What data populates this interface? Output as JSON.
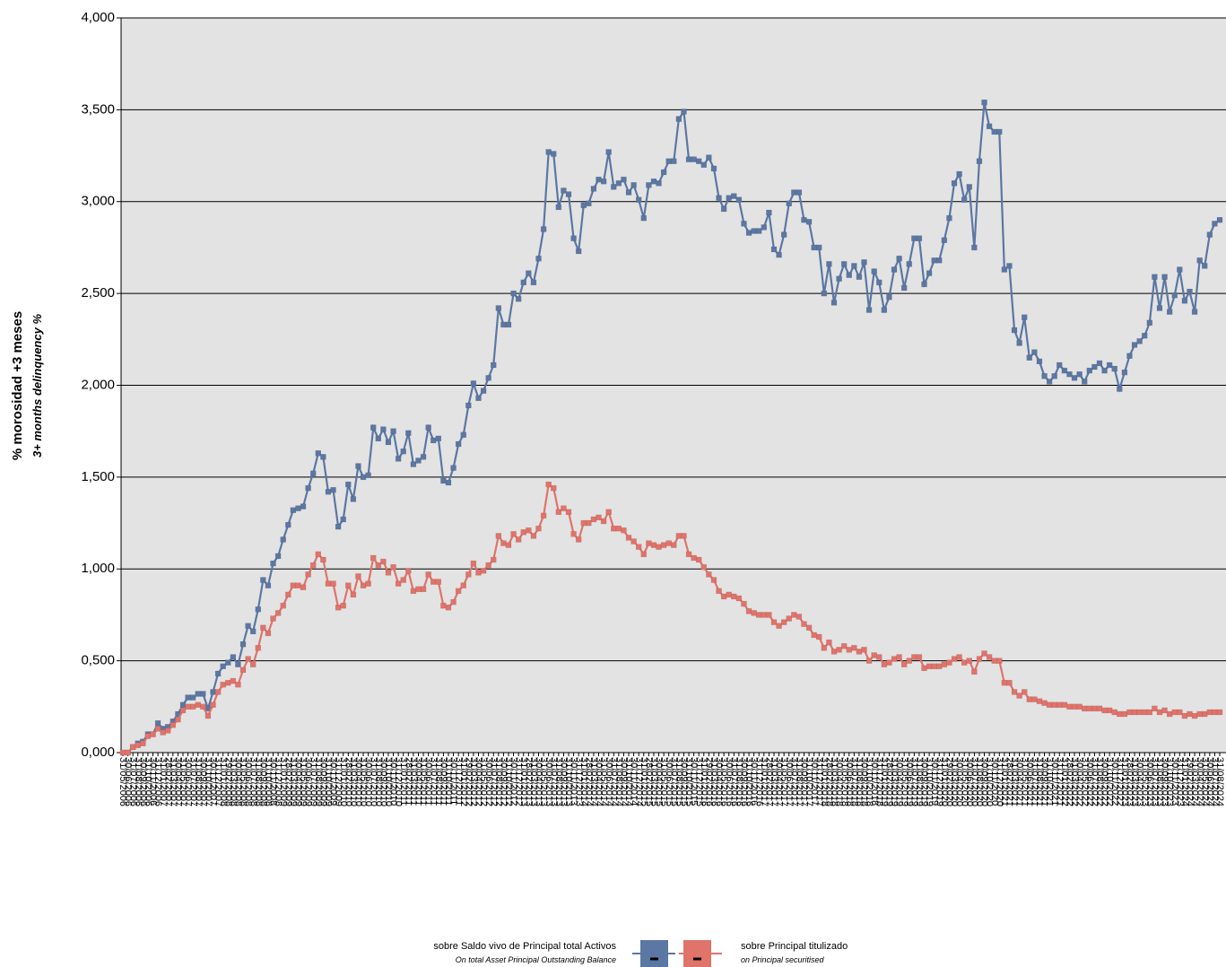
{
  "chart_data": {
    "type": "line",
    "y_title": "% morosidad +3 meses",
    "y_subtitle": "3+ months delinquency %",
    "ylim": [
      0,
      4
    ],
    "yticks": [
      {
        "value": 0,
        "label": "0,000"
      },
      {
        "value": 0.5,
        "label": "0,500"
      },
      {
        "value": 1,
        "label": "1,000"
      },
      {
        "value": 1.5,
        "label": "1,500"
      },
      {
        "value": 2,
        "label": "2,000"
      },
      {
        "value": 2.5,
        "label": "2,500"
      },
      {
        "value": 3,
        "label": "3,000"
      },
      {
        "value": 3.5,
        "label": "3,500"
      },
      {
        "value": 4,
        "label": "4,000"
      }
    ],
    "grid": true,
    "legend": "bottom",
    "categories": [
      "31/05/2006",
      "30/06/2006",
      "31/07/2006",
      "31/08/2006",
      "30/09/2006",
      "31/10/2006",
      "30/11/2006",
      "31/12/2006",
      "31/01/2007",
      "28/02/2007",
      "31/03/2007",
      "30/04/2007",
      "31/05/2007",
      "30/06/2007",
      "31/07/2007",
      "31/08/2007",
      "30/09/2007",
      "31/10/2007",
      "30/11/2007",
      "31/12/2007",
      "31/01/2008",
      "29/02/2008",
      "31/03/2008",
      "30/04/2008",
      "31/05/2008",
      "30/06/2008",
      "31/07/2008",
      "31/08/2008",
      "30/09/2008",
      "31/10/2008",
      "30/11/2008",
      "31/12/2008",
      "31/01/2009",
      "28/02/2009",
      "31/03/2009",
      "30/04/2009",
      "31/05/2009",
      "30/06/2009",
      "31/07/2009",
      "31/08/2009",
      "30/09/2009",
      "31/10/2009",
      "30/11/2009",
      "31/12/2009",
      "31/01/2010",
      "28/02/2010",
      "31/03/2010",
      "30/04/2010",
      "31/05/2010",
      "30/06/2010",
      "31/07/2010",
      "31/08/2010",
      "30/09/2010",
      "31/10/2010",
      "30/11/2010",
      "31/12/2010",
      "31/01/2011",
      "28/02/2011",
      "31/03/2011",
      "30/04/2011",
      "31/05/2011",
      "30/06/2011",
      "31/07/2011",
      "31/08/2011",
      "30/09/2011",
      "31/10/2011",
      "30/11/2011",
      "31/12/2011",
      "31/01/2012",
      "29/02/2012",
      "31/03/2012",
      "30/04/2012",
      "31/05/2012",
      "30/06/2012",
      "31/07/2012",
      "31/08/2012",
      "30/09/2012",
      "31/10/2012",
      "30/11/2012",
      "31/12/2012",
      "31/01/2013",
      "28/02/2013",
      "31/03/2013",
      "30/04/2013",
      "31/05/2013",
      "30/06/2013",
      "31/07/2013",
      "31/08/2013",
      "30/09/2013",
      "31/10/2013",
      "30/11/2013",
      "31/12/2013",
      "31/01/2014",
      "28/02/2014",
      "31/03/2014",
      "30/04/2014",
      "31/05/2014",
      "30/06/2014",
      "31/07/2014",
      "31/08/2014",
      "30/09/2014",
      "31/10/2014",
      "30/11/2014",
      "31/12/2014",
      "31/01/2015",
      "28/02/2015",
      "31/03/2015",
      "30/04/2015",
      "31/05/2015",
      "30/06/2015",
      "31/07/2015",
      "31/08/2015",
      "30/09/2015",
      "31/10/2015",
      "30/11/2015",
      "31/12/2015",
      "31/01/2016",
      "29/02/2016",
      "31/03/2016",
      "30/04/2016",
      "31/05/2016",
      "30/06/2016",
      "31/07/2016",
      "31/08/2016",
      "30/09/2016",
      "31/10/2016",
      "30/11/2016",
      "31/12/2016",
      "31/01/2017",
      "28/02/2017",
      "31/03/2017",
      "30/04/2017",
      "31/05/2017",
      "30/06/2017",
      "31/07/2017",
      "31/08/2017",
      "30/09/2017",
      "31/10/2017",
      "30/11/2017",
      "31/12/2017",
      "31/01/2018",
      "28/02/2018",
      "31/03/2018",
      "30/04/2018",
      "31/05/2018",
      "30/06/2018",
      "31/07/2018",
      "31/08/2018",
      "30/09/2018",
      "31/10/2018",
      "30/11/2018",
      "31/12/2018",
      "31/01/2019",
      "28/02/2019",
      "31/03/2019",
      "30/04/2019",
      "31/05/2019",
      "30/06/2019",
      "31/07/2019",
      "31/08/2019",
      "30/09/2019",
      "31/10/2019",
      "30/11/2019",
      "31/12/2019",
      "31/01/2020",
      "29/02/2020",
      "31/03/2020",
      "30/04/2020",
      "31/05/2020",
      "30/06/2020",
      "31/07/2020",
      "31/08/2020",
      "30/09/2020",
      "31/10/2020",
      "30/11/2020",
      "31/12/2020",
      "31/01/2021",
      "28/02/2021",
      "31/03/2021",
      "30/04/2021",
      "31/05/2021",
      "30/06/2021",
      "31/07/2021",
      "31/08/2021",
      "30/09/2021",
      "31/10/2021",
      "30/11/2021",
      "31/12/2021",
      "31/01/2022",
      "28/02/2022",
      "31/03/2022",
      "30/04/2022",
      "31/05/2022",
      "30/06/2022",
      "31/07/2022",
      "31/08/2022",
      "30/09/2022",
      "31/10/2022",
      "30/11/2022",
      "31/12/2022",
      "31/01/2023",
      "28/02/2023",
      "31/03/2023",
      "30/04/2023",
      "31/05/2023",
      "30/06/2023",
      "31/07/2023",
      "31/08/2023",
      "30/09/2023",
      "31/10/2023",
      "30/11/2023",
      "31/12/2023",
      "31/01/2024",
      "29/02/2024",
      "31/03/2024",
      "30/04/2024",
      "31/05/2024",
      "30/06/2024",
      "31/07/2024",
      "31/08/2024"
    ],
    "series": [
      {
        "name": "sobre Saldo vivo de Principal total Activos",
        "subname": "On total Asset Principal Outstanding Balance",
        "color": "#5b77a3",
        "values": [
          0,
          0,
          0.03,
          0.05,
          0.06,
          0.1,
          0.1,
          0.16,
          0.13,
          0.14,
          0.17,
          0.21,
          0.26,
          0.3,
          0.3,
          0.32,
          0.32,
          0.24,
          0.33,
          0.43,
          0.47,
          0.49,
          0.52,
          0.48,
          0.59,
          0.69,
          0.66,
          0.78,
          0.94,
          0.91,
          1.03,
          1.07,
          1.16,
          1.24,
          1.32,
          1.33,
          1.34,
          1.44,
          1.52,
          1.63,
          1.61,
          1.42,
          1.43,
          1.23,
          1.27,
          1.46,
          1.38,
          1.56,
          1.5,
          1.51,
          1.77,
          1.71,
          1.76,
          1.69,
          1.75,
          1.6,
          1.64,
          1.74,
          1.57,
          1.59,
          1.61,
          1.77,
          1.7,
          1.71,
          1.48,
          1.47,
          1.55,
          1.68,
          1.73,
          1.89,
          2.01,
          1.93,
          1.97,
          2.04,
          2.11,
          2.42,
          2.33,
          2.33,
          2.5,
          2.47,
          2.56,
          2.61,
          2.56,
          2.69,
          2.85,
          3.27,
          3.26,
          2.97,
          3.06,
          3.04,
          2.8,
          2.73,
          2.98,
          2.99,
          3.07,
          3.12,
          3.11,
          3.27,
          3.08,
          3.1,
          3.12,
          3.05,
          3.09,
          3.01,
          2.91,
          3.09,
          3.11,
          3.1,
          3.16,
          3.22,
          3.22,
          3.45,
          3.49,
          3.23,
          3.23,
          3.22,
          3.2,
          3.24,
          3.18,
          3.02,
          2.96,
          3.02,
          3.03,
          3.01,
          2.88,
          2.83,
          2.84,
          2.84,
          2.86,
          2.94,
          2.74,
          2.71,
          2.82,
          2.99,
          3.05,
          3.05,
          2.9,
          2.89,
          2.75,
          2.75,
          2.5,
          2.66,
          2.45,
          2.58,
          2.66,
          2.6,
          2.65,
          2.59,
          2.67,
          2.41,
          2.62,
          2.56,
          2.41,
          2.48,
          2.63,
          2.69,
          2.53,
          2.66,
          2.8,
          2.8,
          2.55,
          2.61,
          2.68,
          2.68,
          2.79,
          2.91,
          3.1,
          3.15,
          3.01,
          3.08,
          2.75,
          3.22,
          3.54,
          3.41,
          3.38,
          3.38,
          2.63,
          2.65,
          2.3,
          2.23,
          2.37,
          2.15,
          2.18,
          2.13,
          2.05,
          2.02,
          2.05,
          2.11,
          2.08,
          2.06,
          2.04,
          2.06,
          2.02,
          2.08,
          2.1,
          2.12,
          2.08,
          2.11,
          2.09,
          1.98,
          2.07,
          2.16,
          2.22,
          2.24,
          2.27,
          2.34,
          2.59,
          2.42,
          2.59,
          2.4,
          2.49,
          2.63,
          2.46,
          2.51,
          2.4,
          2.68,
          2.65,
          2.82,
          2.88,
          2.9
        ]
      },
      {
        "name": "sobre Principal titulizado",
        "subname": "on Principal securitised",
        "color": "#e0736a",
        "values": [
          0,
          0,
          0.03,
          0.04,
          0.05,
          0.09,
          0.1,
          0.13,
          0.11,
          0.12,
          0.15,
          0.18,
          0.23,
          0.25,
          0.25,
          0.26,
          0.25,
          0.2,
          0.26,
          0.33,
          0.37,
          0.38,
          0.39,
          0.37,
          0.45,
          0.51,
          0.48,
          0.57,
          0.68,
          0.65,
          0.73,
          0.76,
          0.8,
          0.86,
          0.91,
          0.91,
          0.9,
          0.97,
          1.02,
          1.08,
          1.05,
          0.92,
          0.92,
          0.79,
          0.8,
          0.91,
          0.86,
          0.96,
          0.91,
          0.92,
          1.06,
          1.02,
          1.04,
          0.98,
          1.01,
          0.92,
          0.94,
          0.99,
          0.88,
          0.89,
          0.89,
          0.97,
          0.93,
          0.93,
          0.8,
          0.79,
          0.82,
          0.88,
          0.91,
          0.97,
          1.03,
          0.98,
          0.99,
          1.02,
          1.05,
          1.18,
          1.14,
          1.13,
          1.19,
          1.16,
          1.2,
          1.21,
          1.18,
          1.22,
          1.29,
          1.46,
          1.44,
          1.31,
          1.33,
          1.31,
          1.19,
          1.16,
          1.25,
          1.25,
          1.27,
          1.28,
          1.26,
          1.31,
          1.22,
          1.22,
          1.21,
          1.17,
          1.15,
          1.12,
          1.08,
          1.14,
          1.13,
          1.12,
          1.13,
          1.14,
          1.13,
          1.18,
          1.18,
          1.08,
          1.06,
          1.05,
          1.01,
          0.97,
          0.94,
          0.88,
          0.85,
          0.86,
          0.85,
          0.84,
          0.81,
          0.77,
          0.76,
          0.75,
          0.75,
          0.75,
          0.71,
          0.69,
          0.71,
          0.73,
          0.75,
          0.74,
          0.7,
          0.68,
          0.64,
          0.63,
          0.57,
          0.6,
          0.55,
          0.56,
          0.58,
          0.56,
          0.57,
          0.55,
          0.56,
          0.5,
          0.53,
          0.52,
          0.48,
          0.49,
          0.51,
          0.52,
          0.48,
          0.5,
          0.52,
          0.52,
          0.46,
          0.47,
          0.47,
          0.47,
          0.48,
          0.49,
          0.51,
          0.52,
          0.49,
          0.5,
          0.44,
          0.51,
          0.54,
          0.52,
          0.5,
          0.5,
          0.38,
          0.38,
          0.33,
          0.31,
          0.33,
          0.29,
          0.29,
          0.28,
          0.27,
          0.26,
          0.26,
          0.26,
          0.26,
          0.25,
          0.25,
          0.25,
          0.24,
          0.24,
          0.24,
          0.24,
          0.23,
          0.23,
          0.22,
          0.21,
          0.21,
          0.22,
          0.22,
          0.22,
          0.22,
          0.22,
          0.24,
          0.22,
          0.23,
          0.21,
          0.22,
          0.22,
          0.2,
          0.21,
          0.2,
          0.21,
          0.21,
          0.22,
          0.22,
          0.22
        ]
      }
    ]
  }
}
